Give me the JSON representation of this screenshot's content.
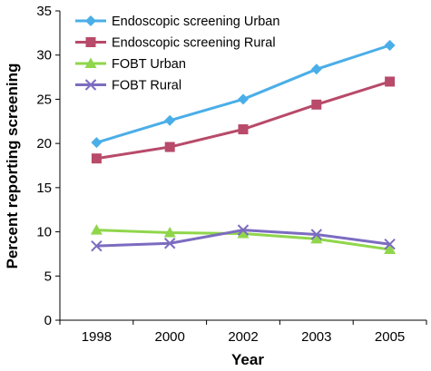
{
  "chart_data": {
    "type": "line",
    "title": "",
    "xlabel": "Year",
    "ylabel": "Percent reporting screening",
    "categories": [
      "1998",
      "2000",
      "2002",
      "2003",
      "2005"
    ],
    "ylim": [
      0,
      35
    ],
    "yticks": [
      0,
      5,
      10,
      15,
      20,
      25,
      30,
      35
    ],
    "grid": false,
    "legend_position": "top-left",
    "series": [
      {
        "name": "Endoscopic screening Urban",
        "values": [
          20.1,
          22.6,
          25.0,
          28.4,
          31.1
        ],
        "color": "#4aaee8",
        "marker": "diamond-icon"
      },
      {
        "name": "Endoscopic screening  Rural",
        "values": [
          18.3,
          19.6,
          21.6,
          24.4,
          27.0
        ],
        "color": "#b84a6a",
        "marker": "square-icon"
      },
      {
        "name": "FOBT Urban",
        "values": [
          10.2,
          9.9,
          9.8,
          9.2,
          8.0
        ],
        "color": "#8fd64a",
        "marker": "triangle-icon"
      },
      {
        "name": "FOBT Rural",
        "values": [
          8.4,
          8.7,
          10.2,
          9.7,
          8.6
        ],
        "color": "#7c6cc0",
        "marker": "x-mark-icon"
      }
    ]
  }
}
